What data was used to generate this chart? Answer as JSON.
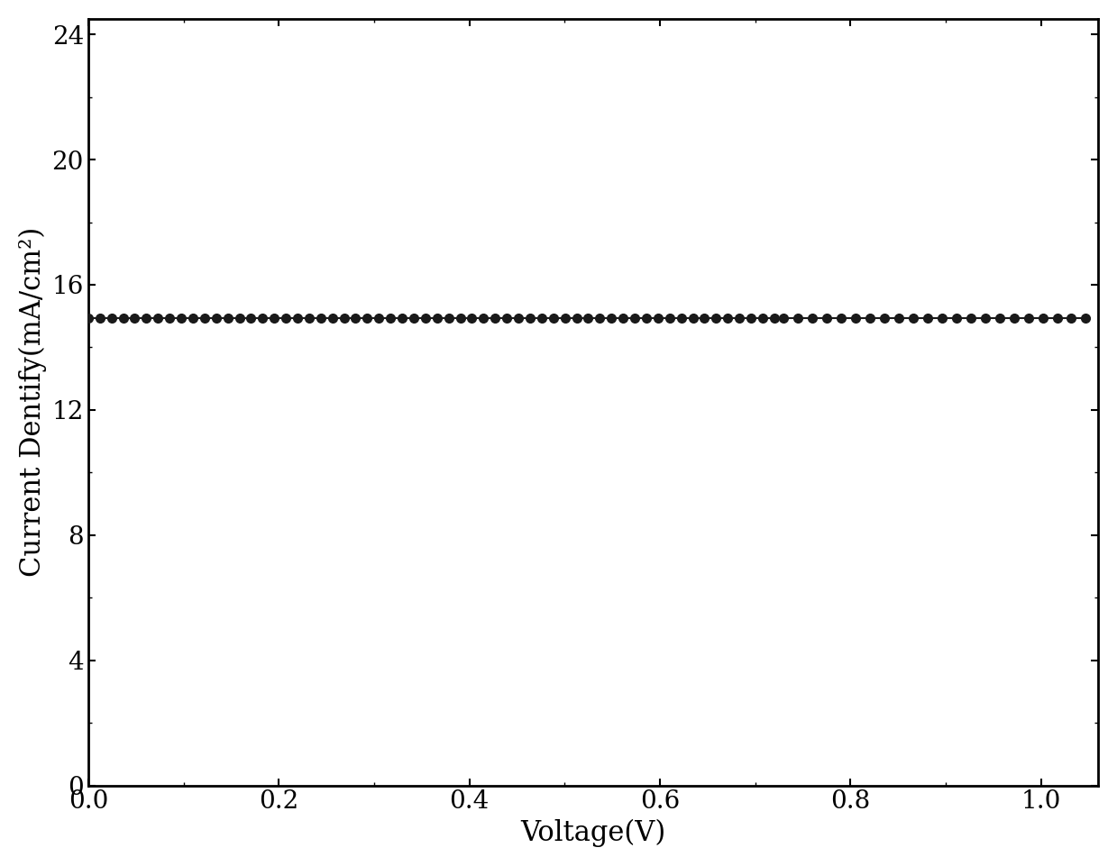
{
  "xlabel": "Voltage(V)",
  "ylabel": "Current Dentify(mA/cm²)",
  "xlim": [
    0.0,
    1.06
  ],
  "ylim": [
    0.0,
    24.5
  ],
  "xticks": [
    0.0,
    0.2,
    0.4,
    0.6,
    0.8,
    1.0
  ],
  "yticks": [
    0,
    4,
    8,
    12,
    16,
    20,
    24
  ],
  "line_color": "#1a1a1a",
  "marker_color": "#1a1a1a",
  "marker": "o",
  "marker_size": 7,
  "line_width": 1.5,
  "xlabel_fontsize": 22,
  "ylabel_fontsize": 22,
  "tick_fontsize": 20,
  "background_color": "#ffffff",
  "Jsc": 22.7,
  "Voc": 1.047,
  "n_ideality": 1.5,
  "J0": 1e-18,
  "Rs": 0.5,
  "Rsh": 5000
}
